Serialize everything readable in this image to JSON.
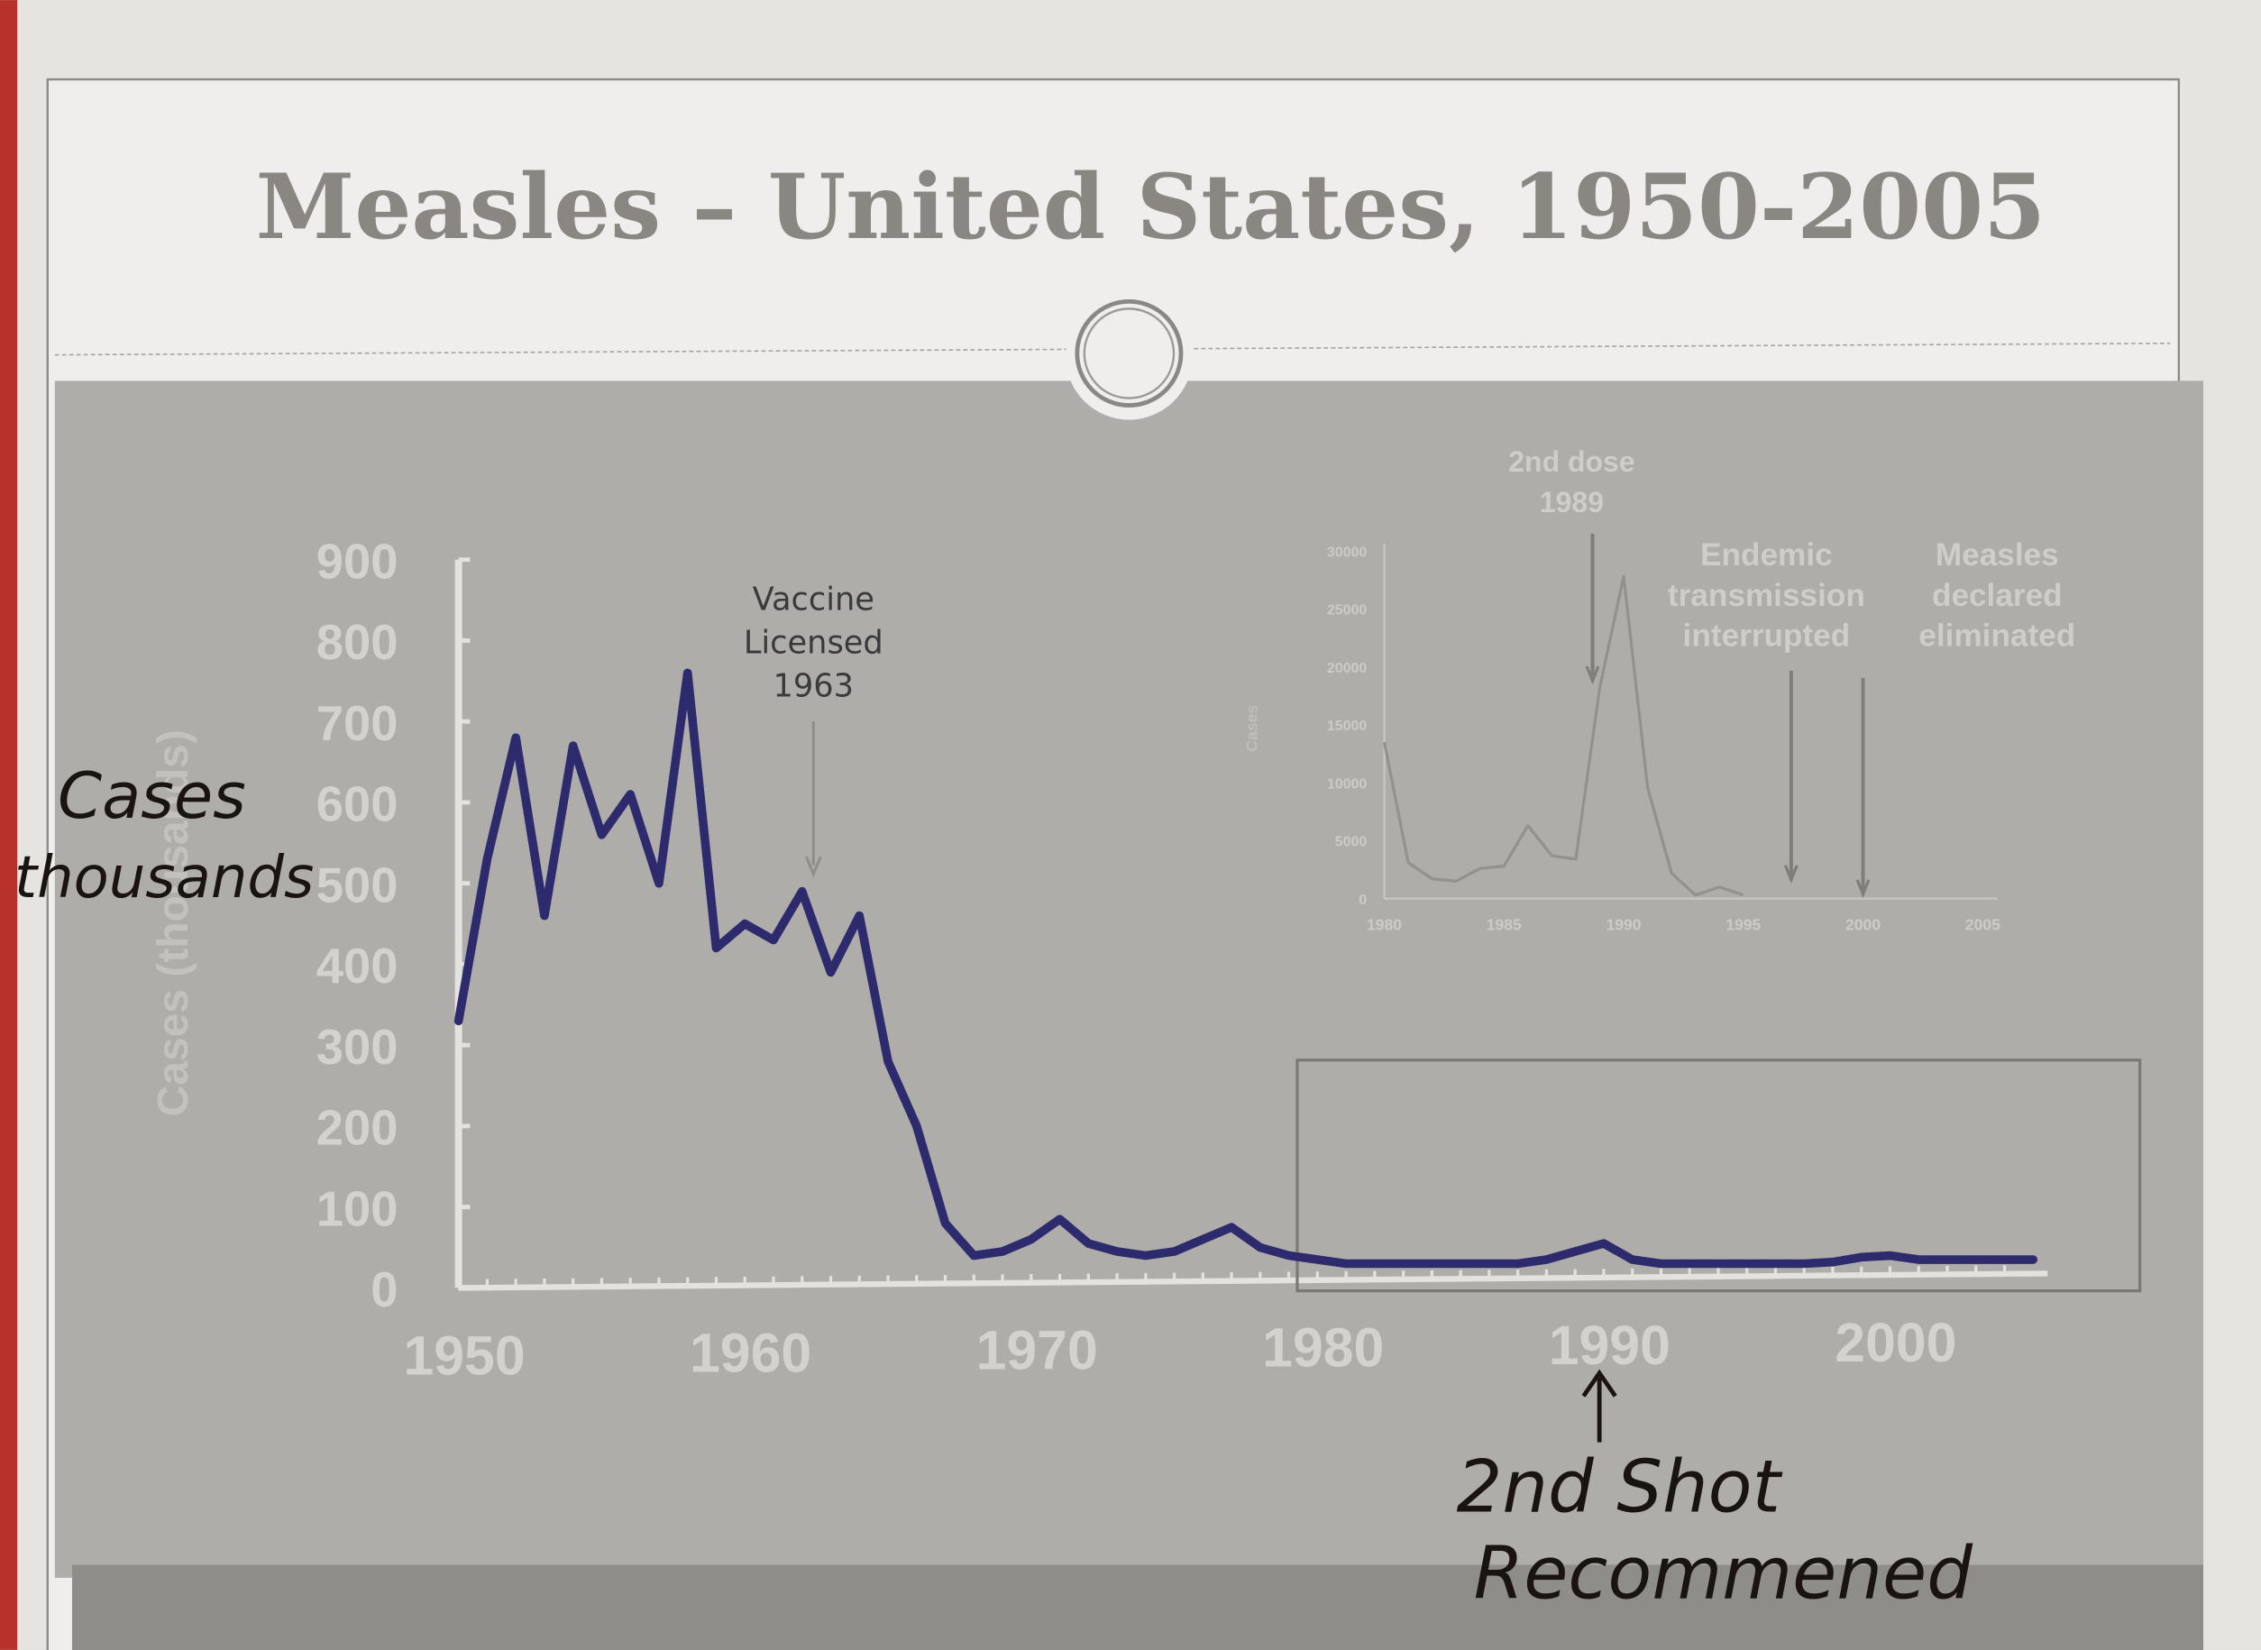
{
  "colors": {
    "paper": "#e8e6e3",
    "chart_bg": "#aeada9",
    "trace_line": "#2d2a6e",
    "axis": "#e4e2de",
    "handwriting": "#1a1410"
  },
  "chart_data": [
    {
      "type": "line",
      "title": "Measles – United States, 1950-2005",
      "ylabel": "Cases (thousands)",
      "xlabel": "",
      "xlim": [
        1950,
        2005
      ],
      "ylim": [
        0,
        900
      ],
      "x_ticks": [
        "1950",
        "1960",
        "1970",
        "1980",
        "1990",
        "2000"
      ],
      "y_ticks": [
        "0",
        "100",
        "200",
        "300",
        "400",
        "500",
        "600",
        "700",
        "800",
        "900"
      ],
      "grid": false,
      "x": [
        1950,
        1951,
        1952,
        1953,
        1954,
        1955,
        1956,
        1957,
        1958,
        1959,
        1960,
        1961,
        1962,
        1963,
        1964,
        1965,
        1966,
        1967,
        1968,
        1969,
        1970,
        1971,
        1972,
        1973,
        1974,
        1975,
        1976,
        1977,
        1978,
        1979,
        1980,
        1981,
        1982,
        1983,
        1984,
        1985,
        1986,
        1987,
        1988,
        1989,
        1990,
        1991,
        1992,
        1993,
        1994,
        1995,
        1996,
        1997,
        1998,
        1999,
        2000,
        2001,
        2002,
        2003,
        2004,
        2005
      ],
      "values": [
        330,
        530,
        680,
        460,
        670,
        560,
        610,
        500,
        760,
        420,
        450,
        430,
        490,
        390,
        460,
        280,
        200,
        80,
        40,
        45,
        60,
        85,
        55,
        45,
        40,
        45,
        60,
        75,
        50,
        40,
        35,
        30,
        30,
        30,
        30,
        30,
        30,
        30,
        35,
        45,
        55,
        35,
        30,
        30,
        30,
        30,
        30,
        30,
        32,
        38,
        40,
        35,
        35,
        35,
        35,
        35
      ],
      "annotations": [
        {
          "text_lines": [
            "Vaccine",
            "Licensed",
            "1963"
          ],
          "x": 1963
        }
      ],
      "highlight_box": {
        "x_range": [
          1980,
          2005
        ]
      }
    },
    {
      "type": "line",
      "ylabel": "Cases",
      "xlim": [
        1980,
        2005
      ],
      "ylim": [
        0,
        30000
      ],
      "x_ticks": [
        "1980",
        "1985",
        "1990",
        "1995",
        "2000",
        "2005"
      ],
      "y_ticks": [
        "0",
        "5000",
        "10000",
        "15000",
        "20000",
        "25000",
        "30000"
      ],
      "grid": false,
      "x": [
        1980,
        1981,
        1982,
        1983,
        1984,
        1985,
        1986,
        1987,
        1988,
        1989,
        1990,
        1991,
        1992,
        1993,
        1994,
        1995
      ],
      "values": [
        13500,
        3100,
        1700,
        1500,
        2600,
        2800,
        6300,
        3700,
        3400,
        18200,
        27800,
        9600,
        2200,
        300,
        1000,
        300
      ],
      "annotations": [
        {
          "text_lines": [
            "2nd dose",
            "1989"
          ],
          "x": 1988.7
        },
        {
          "text_lines": [
            "Endemic",
            "transmission",
            "interrupted"
          ],
          "x": 1997
        },
        {
          "text_lines": [
            "Measles",
            "declared",
            "eliminated"
          ],
          "x": 2000
        }
      ]
    }
  ],
  "handwritten": {
    "ylabel_line1": "Cases",
    "ylabel_line2": "thousands",
    "note_line1": "2nd Shot",
    "note_line2": "Recommened",
    "note_points_to_year": 1990
  }
}
